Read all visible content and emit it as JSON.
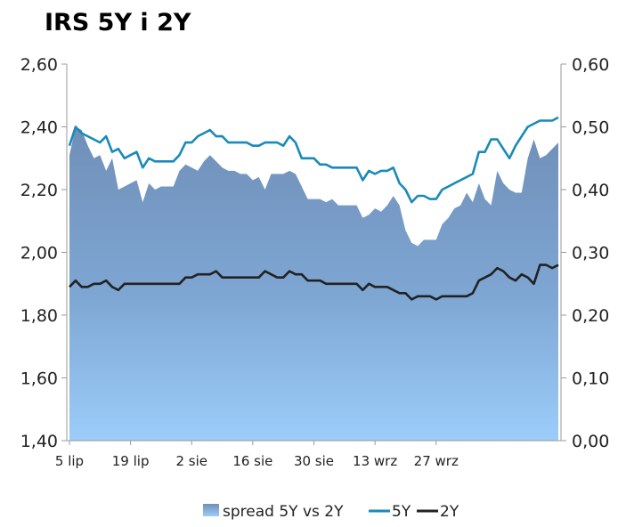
{
  "chart_data": {
    "type": "area",
    "title": "IRS 5Y i 2Y",
    "left_axis": {
      "ylim": [
        1.4,
        2.6
      ],
      "ticks": [
        "1,40",
        "1,60",
        "1,80",
        "2,00",
        "2,20",
        "2,40",
        "2,60"
      ]
    },
    "right_axis": {
      "ylim": [
        0.0,
        0.6
      ],
      "ticks": [
        "0,00",
        "0,10",
        "0,20",
        "0,30",
        "0,40",
        "0,50",
        "0,60"
      ]
    },
    "x_tick_labels": [
      {
        "label": "5 lip",
        "index": 0
      },
      {
        "label": "19 lip",
        "index": 10
      },
      {
        "label": "2 sie",
        "index": 20
      },
      {
        "label": "16 sie",
        "index": 30
      },
      {
        "label": "30 sie",
        "index": 40
      },
      {
        "label": "13 wrz",
        "index": 50
      },
      {
        "label": "27 wrz",
        "index": 60
      }
    ],
    "series": [
      {
        "name": "spread 5Y vs 2Y",
        "type": "area",
        "axis": "right",
        "color": "#7a9cc4",
        "values": [
          0.455,
          0.5,
          0.495,
          0.47,
          0.45,
          0.455,
          0.43,
          0.45,
          0.4,
          0.405,
          0.41,
          0.415,
          0.38,
          0.41,
          0.4,
          0.405,
          0.405,
          0.405,
          0.43,
          0.44,
          0.435,
          0.43,
          0.445,
          0.455,
          0.445,
          0.435,
          0.43,
          0.43,
          0.425,
          0.425,
          0.415,
          0.42,
          0.4,
          0.425,
          0.425,
          0.425,
          0.43,
          0.425,
          0.405,
          0.385,
          0.385,
          0.385,
          0.38,
          0.385,
          0.375,
          0.375,
          0.375,
          0.375,
          0.355,
          0.36,
          0.37,
          0.365,
          0.375,
          0.39,
          0.375,
          0.335,
          0.315,
          0.31,
          0.32,
          0.32,
          0.32,
          0.345,
          0.355,
          0.37,
          0.375,
          0.395,
          0.38,
          0.41,
          0.385,
          0.375,
          0.43,
          0.41,
          0.4,
          0.395,
          0.395,
          0.45,
          0.48,
          0.45,
          0.455,
          0.465,
          0.475
        ]
      },
      {
        "name": "5Y",
        "type": "line",
        "axis": "left",
        "color": "#1a8ab8",
        "values": [
          2.34,
          2.4,
          2.38,
          2.37,
          2.36,
          2.35,
          2.37,
          2.32,
          2.33,
          2.3,
          2.31,
          2.32,
          2.27,
          2.3,
          2.29,
          2.29,
          2.29,
          2.29,
          2.31,
          2.35,
          2.35,
          2.37,
          2.38,
          2.39,
          2.37,
          2.37,
          2.35,
          2.35,
          2.35,
          2.35,
          2.34,
          2.34,
          2.35,
          2.35,
          2.35,
          2.34,
          2.37,
          2.35,
          2.3,
          2.3,
          2.3,
          2.28,
          2.28,
          2.27,
          2.27,
          2.27,
          2.27,
          2.27,
          2.23,
          2.26,
          2.25,
          2.26,
          2.26,
          2.27,
          2.22,
          2.2,
          2.16,
          2.18,
          2.18,
          2.17,
          2.17,
          2.2,
          2.21,
          2.22,
          2.23,
          2.24,
          2.25,
          2.32,
          2.32,
          2.36,
          2.36,
          2.33,
          2.3,
          2.34,
          2.37,
          2.4,
          2.41,
          2.42,
          2.42,
          2.42,
          2.43
        ]
      },
      {
        "name": "2Y",
        "type": "line",
        "axis": "left",
        "color": "#222222",
        "values": [
          1.89,
          1.91,
          1.89,
          1.89,
          1.9,
          1.9,
          1.91,
          1.89,
          1.88,
          1.9,
          1.9,
          1.9,
          1.9,
          1.9,
          1.9,
          1.9,
          1.9,
          1.9,
          1.9,
          1.92,
          1.92,
          1.93,
          1.93,
          1.93,
          1.94,
          1.92,
          1.92,
          1.92,
          1.92,
          1.92,
          1.92,
          1.92,
          1.94,
          1.93,
          1.92,
          1.92,
          1.94,
          1.93,
          1.93,
          1.91,
          1.91,
          1.91,
          1.9,
          1.9,
          1.9,
          1.9,
          1.9,
          1.9,
          1.88,
          1.9,
          1.89,
          1.89,
          1.89,
          1.88,
          1.87,
          1.87,
          1.85,
          1.86,
          1.86,
          1.86,
          1.85,
          1.86,
          1.86,
          1.86,
          1.86,
          1.86,
          1.87,
          1.91,
          1.92,
          1.93,
          1.95,
          1.94,
          1.92,
          1.91,
          1.93,
          1.92,
          1.9,
          1.96,
          1.96,
          1.95,
          1.96
        ]
      }
    ],
    "legend_position": "bottom",
    "grid": false
  }
}
